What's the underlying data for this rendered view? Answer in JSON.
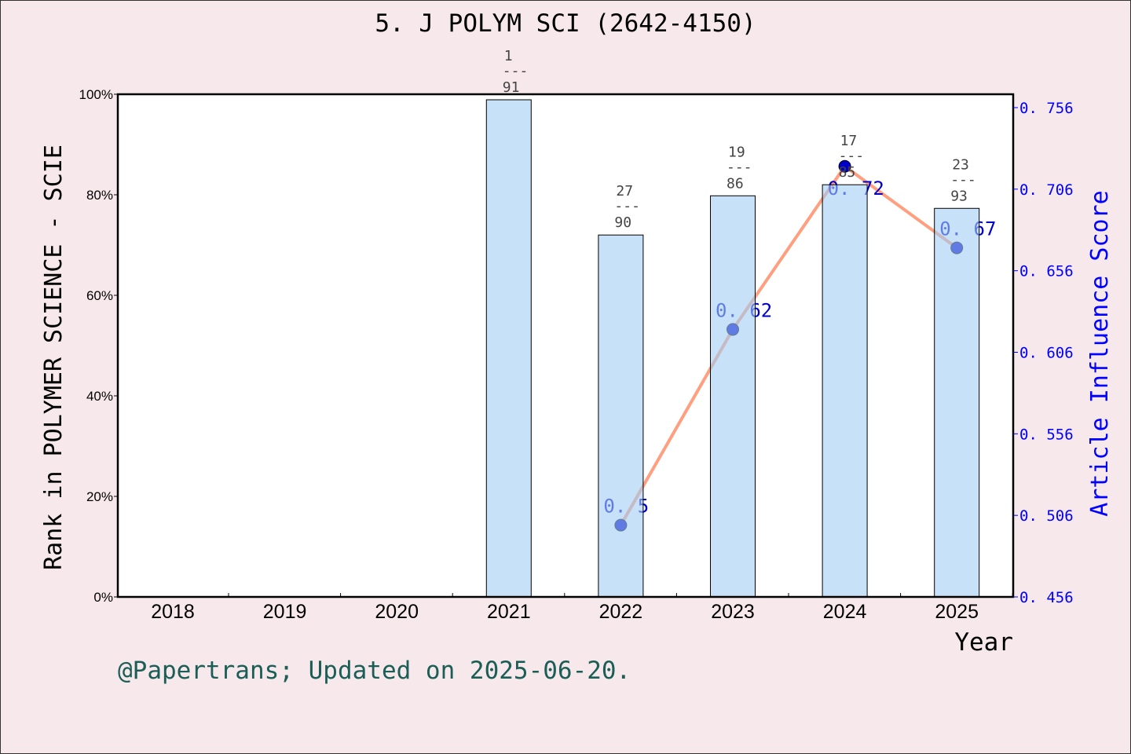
{
  "chart_data": {
    "type": "bar",
    "title": "5. J POLYM SCI (2642-4150)",
    "xlabel": "Year",
    "ylabel": "Rank in POLYMER SCIENCE - SCIE",
    "y2label": "Article Influence Score",
    "categories": [
      "2018",
      "2019",
      "2020",
      "2021",
      "2022",
      "2023",
      "2024",
      "2025"
    ],
    "ylim": [
      0,
      100
    ],
    "yticks": [
      "0%",
      "20%",
      "40%",
      "60%",
      "80%",
      "100%"
    ],
    "y2lim": [
      0.456,
      0.756
    ],
    "y2ticks": [
      "0.456",
      "0.506",
      "0.556",
      "0.606",
      "0.656",
      "0.706",
      "0.756"
    ],
    "bars": [
      {
        "year": "2021",
        "value": 98.9,
        "rank": "1",
        "total": "91"
      },
      {
        "year": "2022",
        "value": 72.0,
        "rank": "27",
        "total": "90"
      },
      {
        "year": "2023",
        "value": 79.8,
        "rank": "19",
        "total": "86"
      },
      {
        "year": "2024",
        "value": 82.0,
        "rank": "17",
        "total": "85"
      },
      {
        "year": "2025",
        "value": 77.3,
        "rank": "23",
        "total": "93"
      }
    ],
    "line": [
      {
        "year": "2022",
        "value": 0.5,
        "label": "0.5"
      },
      {
        "year": "2023",
        "value": 0.62,
        "label": "0.62"
      },
      {
        "year": "2024",
        "value": 0.72,
        "label": "0.72"
      },
      {
        "year": "2025",
        "value": 0.67,
        "label": "0.67"
      }
    ],
    "colors": {
      "bar": "#c5e0f7",
      "line": "#ff9f7f",
      "point": "#0000cc",
      "right_axis": "#0000ff",
      "footer": "#1a5e55"
    },
    "grid": false
  },
  "footer": "@Papertrans; Updated on 2025-06-20."
}
